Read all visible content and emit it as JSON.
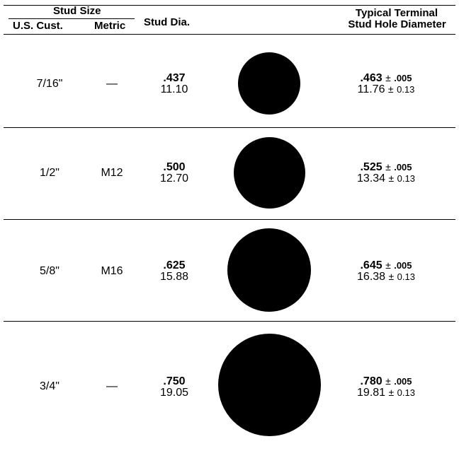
{
  "header": {
    "stud_size": "Stud Size",
    "us_cust": "U.S. Cust.",
    "metric": "Metric",
    "stud_dia": "Stud Dia.",
    "terminal_line1": "Typical Terminal",
    "terminal_line2": "Stud Hole Diameter"
  },
  "rows": [
    {
      "us": "7/16\"",
      "metric": "—",
      "dia_in": ".437",
      "dia_mm": "11.10",
      "hole_in": ".463",
      "tol_in": ".005",
      "hole_mm": "11.76",
      "tol_mm": "0.13",
      "pm": "±"
    },
    {
      "us": "1/2\"",
      "metric": "M12",
      "dia_in": ".500",
      "dia_mm": "12.70",
      "hole_in": ".525",
      "tol_in": ".005",
      "hole_mm": "13.34",
      "tol_mm": "0.13",
      "pm": "±"
    },
    {
      "us": "5/8\"",
      "metric": "M16",
      "dia_in": ".625",
      "dia_mm": "15.88",
      "hole_in": ".645",
      "tol_in": ".005",
      "hole_mm": "16.38",
      "tol_mm": "0.13",
      "pm": "±"
    },
    {
      "us": "3/4\"",
      "metric": "—",
      "dia_in": ".750",
      "dia_mm": "19.05",
      "hole_in": ".780",
      "tol_in": ".005",
      "hole_mm": "19.81",
      "tol_mm": "0.13",
      "pm": "±"
    }
  ]
}
